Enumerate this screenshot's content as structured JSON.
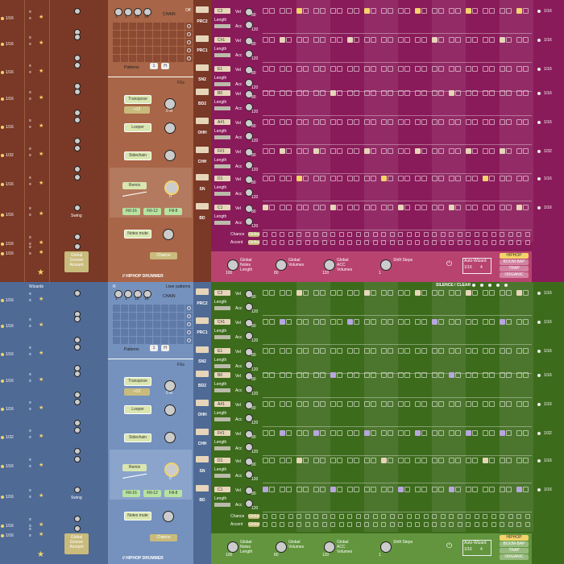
{
  "colors": {
    "brown": "#7a3826",
    "brown_panel": "#a86547",
    "purple": "#8a1b5a",
    "blue": "#4f6a95",
    "blue_panel": "#7591bd",
    "green": "#3d6b1c",
    "chip": "#e6d5b9",
    "step_on": "#f3d36a",
    "step_on_green": "#b7a6de"
  },
  "top_label_off": "Off",
  "wizards_label": "Wizards",
  "liser_patterns": "Liser patterns",
  "chain_label": "CHAIN",
  "patterns_label": "Patterns",
  "pattern_a": "1",
  "pattern_b": "H",
  "fx_label": "FXs",
  "transpose_label": "Transpose",
  "transpose_value": "+12",
  "looper_label": "Looper",
  "sidechain_label": "Sidechain",
  "remix_label": "Remix",
  "fill_labels": [
    "Fill-16",
    "Fill-12",
    "Fill-8"
  ],
  "notes_mute_label": "Notes mute",
  "chance_button": "Chance",
  "brand": "// HIPHOP DRUMMER",
  "swing_label": "Swing",
  "global_groove": [
    "Global",
    "Groove",
    "Amount"
  ],
  "rate_labels": [
    "1/16",
    "1/16",
    "1/16",
    "1/16",
    "1/16",
    "1/32",
    "1/16",
    "1/16",
    "1/16",
    "1/16"
  ],
  "pad_labels": [
    "PRC2",
    "PRC1",
    "SN2",
    "BD2",
    "OHH",
    "CHH",
    "SN",
    "BD"
  ],
  "note_labels": [
    "C2",
    "C#1",
    "E1",
    "B0",
    "A#1",
    "F#1",
    "D1",
    "C1"
  ],
  "vel_label": "Vel",
  "acc_label": "Acc",
  "length_label": "Length",
  "vel_value": "80",
  "acc_value": "120",
  "chance_row": "Chance",
  "accent_row": "Accent",
  "global_knob": "Global",
  "bottom": {
    "notes_length": [
      "Global",
      "Notes",
      "Length"
    ],
    "notes_value": "100",
    "volumes": [
      "Global",
      "Volumes"
    ],
    "volumes_value": "80",
    "acc_volumes": [
      "Global",
      "ACC",
      "Volumes"
    ],
    "acc_value": "120",
    "shift_label": "Shift Steps",
    "shift_value": "1",
    "auto_wizard": "Auto-Wizard",
    "auto_rate": "1/16",
    "auto_num": "4"
  },
  "genres": [
    "HIPHOP",
    "BOOM-BAP",
    "TRAP",
    "ORGANIC"
  ],
  "silence_clear": "SILENCE / CLEAR",
  "knob_values": [
    "1",
    "1",
    "13",
    "16"
  ],
  "fx_knob_value": "0 st",
  "remix_value": "0"
}
